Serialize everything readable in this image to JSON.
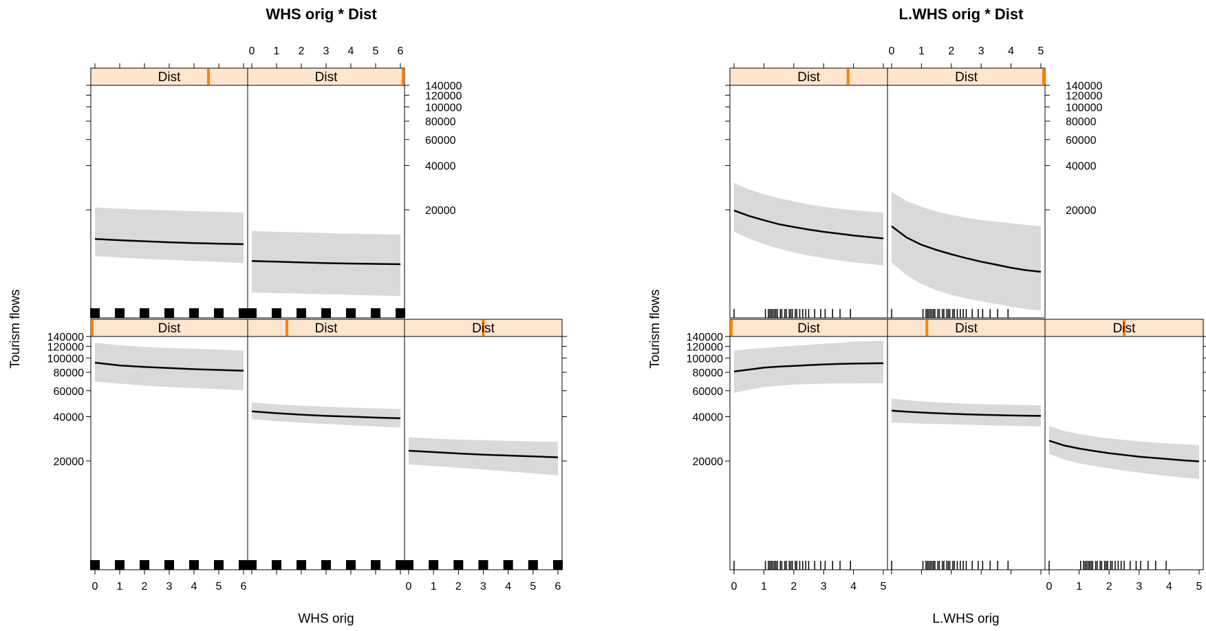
{
  "chart_data": [
    {
      "type": "line",
      "title": "WHS orig * Dist",
      "xlabel": "WHS orig",
      "ylabel": "Tourism flows",
      "strip_label": "Dist",
      "y_scale": "log",
      "y_ticks": [
        20000,
        40000,
        60000,
        80000,
        100000,
        120000,
        140000
      ],
      "y_tick_labels": [
        "20000",
        "40000",
        "60000",
        "80000",
        "100000",
        "120000",
        "140000"
      ],
      "x_ticks": [
        0,
        1,
        2,
        3,
        4,
        5,
        6
      ],
      "x_tick_labels": [
        "0",
        "1",
        "2",
        "3",
        "4",
        "5",
        "6"
      ],
      "xlim": [
        0,
        6
      ],
      "rug": [
        0,
        1,
        2,
        3,
        4,
        5,
        6
      ],
      "panels": [
        {
          "row": "bottom",
          "col": 1,
          "strip_fraction": 0.0,
          "x": [
            0,
            1,
            2,
            3,
            4,
            5,
            6
          ],
          "fit": [
            93000,
            89000,
            87000,
            85500,
            84000,
            83000,
            82000
          ],
          "lower": [
            69000,
            67000,
            65000,
            63500,
            62500,
            61500,
            60500
          ],
          "upper": [
            127000,
            122000,
            119000,
            117000,
            115500,
            114000,
            112000
          ]
        },
        {
          "row": "bottom",
          "col": 2,
          "strip_fraction": 0.25,
          "x": [
            0,
            1,
            2,
            3,
            4,
            5,
            6
          ],
          "fit": [
            43500,
            42200,
            41300,
            40500,
            40000,
            39400,
            39000
          ],
          "lower": [
            38500,
            37300,
            36400,
            35700,
            35000,
            34400,
            33800
          ],
          "upper": [
            50000,
            48500,
            47500,
            46700,
            46100,
            45500,
            45000
          ]
        },
        {
          "row": "bottom",
          "col": 3,
          "strip_fraction": 0.5,
          "x": [
            0,
            1,
            2,
            3,
            4,
            5,
            6
          ],
          "fit": [
            23500,
            23000,
            22500,
            22100,
            21800,
            21500,
            21200
          ],
          "lower": [
            19000,
            18500,
            18000,
            17500,
            17000,
            16500,
            16000
          ],
          "upper": [
            29000,
            28400,
            28000,
            27700,
            27400,
            27200,
            27000
          ]
        },
        {
          "row": "top",
          "col": 1,
          "strip_fraction": 0.75,
          "x": [
            0,
            1,
            2,
            3,
            4,
            5,
            6
          ],
          "fit": [
            12700,
            12450,
            12250,
            12050,
            11900,
            11800,
            11700
          ],
          "lower": [
            9700,
            9500,
            9300,
            9150,
            9000,
            8850,
            8700
          ],
          "upper": [
            20800,
            20400,
            20100,
            19850,
            19600,
            19400,
            19200
          ]
        },
        {
          "row": "top",
          "col": 2,
          "strip_fraction": 1.0,
          "x": [
            0,
            1,
            2,
            3,
            4,
            5,
            6
          ],
          "fit": [
            9000,
            8900,
            8800,
            8700,
            8650,
            8600,
            8550
          ],
          "lower": [
            5500,
            5450,
            5400,
            5350,
            5300,
            5250,
            5200
          ],
          "upper": [
            14400,
            14200,
            14050,
            13900,
            13800,
            13700,
            13600
          ]
        }
      ]
    },
    {
      "type": "line",
      "title": "L.WHS orig * Dist",
      "xlabel": "L.WHS orig",
      "ylabel": "Tourism flows",
      "strip_label": "Dist",
      "y_scale": "log",
      "y_ticks": [
        20000,
        40000,
        60000,
        80000,
        100000,
        120000,
        140000
      ],
      "y_tick_labels": [
        "20000",
        "40000",
        "60000",
        "80000",
        "100000",
        "120000",
        "140000"
      ],
      "x_ticks": [
        0,
        1,
        2,
        3,
        4,
        5
      ],
      "x_tick_labels": [
        "0",
        "1",
        "2",
        "3",
        "4",
        "5"
      ],
      "xlim": [
        0,
        5
      ],
      "rug": [
        0,
        1.05,
        1.15,
        1.2,
        1.25,
        1.3,
        1.35,
        1.4,
        1.45,
        1.55,
        1.6,
        1.7,
        1.75,
        1.85,
        1.9,
        1.95,
        2.05,
        2.1,
        2.2,
        2.3,
        2.4,
        2.5,
        2.7,
        2.9,
        3.05,
        3.3,
        3.55,
        3.9
      ],
      "panels": [
        {
          "row": "bottom",
          "col": 1,
          "strip_fraction": 0.0,
          "x": [
            0,
            0.5,
            1,
            1.5,
            2,
            2.5,
            3,
            3.5,
            4,
            4.5,
            5
          ],
          "fit": [
            81000,
            83500,
            86000,
            87500,
            88500,
            89500,
            90500,
            91200,
            91700,
            92000,
            92200
          ],
          "lower": [
            58000,
            61000,
            63500,
            65000,
            66000,
            66500,
            67000,
            67200,
            67300,
            67400,
            67500
          ],
          "upper": [
            112000,
            115000,
            117000,
            119000,
            121000,
            123000,
            125000,
            127000,
            129000,
            130000,
            131000
          ]
        },
        {
          "row": "bottom",
          "col": 2,
          "strip_fraction": 0.25,
          "x": [
            0,
            0.5,
            1,
            1.5,
            2,
            2.5,
            3,
            3.5,
            4,
            4.5,
            5
          ],
          "fit": [
            44000,
            43300,
            42700,
            42200,
            41800,
            41500,
            41200,
            41000,
            40800,
            40600,
            40500
          ],
          "lower": [
            36500,
            36200,
            35900,
            35700,
            35500,
            35300,
            35100,
            34900,
            34700,
            34500,
            34400
          ],
          "upper": [
            53000,
            51800,
            50800,
            50000,
            49500,
            49000,
            48700,
            48400,
            48200,
            48000,
            47800
          ]
        },
        {
          "row": "bottom",
          "col": 3,
          "strip_fraction": 0.5,
          "x": [
            0,
            0.5,
            1,
            1.5,
            2,
            2.5,
            3,
            3.5,
            4,
            4.5,
            5
          ],
          "fit": [
            27500,
            25500,
            24300,
            23400,
            22600,
            22000,
            21400,
            21000,
            20600,
            20200,
            19900
          ],
          "lower": [
            22300,
            20500,
            19300,
            18500,
            17800,
            17200,
            16700,
            16200,
            15800,
            15400,
            15100
          ],
          "upper": [
            34500,
            32000,
            30500,
            29400,
            28500,
            27800,
            27200,
            26700,
            26300,
            26000,
            25700
          ]
        },
        {
          "row": "top",
          "col": 1,
          "strip_fraction": 0.75,
          "x": [
            0,
            0.5,
            1,
            1.5,
            2,
            2.5,
            3,
            3.5,
            4,
            4.5,
            5
          ],
          "fit": [
            19800,
            18200,
            17000,
            16000,
            15300,
            14700,
            14200,
            13800,
            13400,
            13100,
            12800
          ],
          "lower": [
            14200,
            12800,
            11700,
            10900,
            10300,
            9800,
            9400,
            9100,
            8800,
            8600,
            8400
          ],
          "upper": [
            30500,
            27500,
            25500,
            24000,
            22800,
            21800,
            21000,
            20400,
            19900,
            19500,
            19200
          ]
        },
        {
          "row": "top",
          "col": 2,
          "strip_fraction": 1.0,
          "x": [
            0,
            0.5,
            1,
            1.5,
            2,
            2.5,
            3,
            3.5,
            4,
            4.5,
            5
          ],
          "fit": [
            15500,
            13000,
            11600,
            10700,
            10000,
            9400,
            8900,
            8500,
            8100,
            7800,
            7600
          ],
          "lower": [
            8800,
            7200,
            6300,
            5700,
            5300,
            5000,
            4800,
            4600,
            4400,
            4250,
            4150
          ],
          "upper": [
            26500,
            23000,
            21000,
            19500,
            18500,
            17700,
            17100,
            16600,
            16200,
            15800,
            15500
          ]
        }
      ]
    }
  ]
}
